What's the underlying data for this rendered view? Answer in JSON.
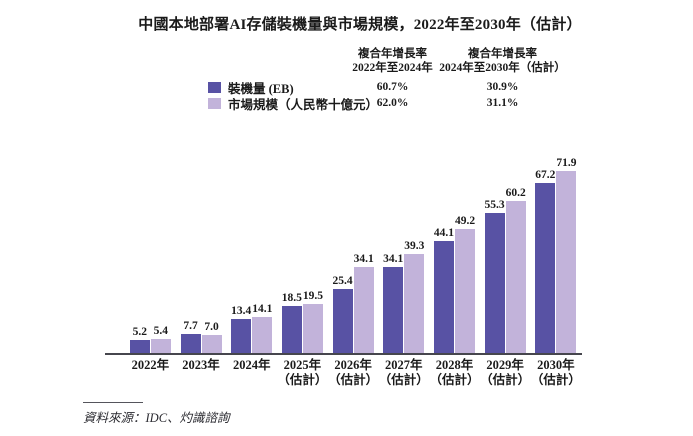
{
  "title": "中國本地部署AI存儲裝機量與市場規模，2022年至2030年（估計）",
  "colors": {
    "installed_base": "#5852A4",
    "market_size": "#C2B3DA",
    "axis": "#46464d"
  },
  "cagr_table": {
    "col1_header_line1": "複合年增長率",
    "col1_header_line2": "2022年至2024年",
    "col2_header_line1": "複合年增長率",
    "col2_header_line2": "2024年至2030年（估計）",
    "rows": [
      {
        "label": "裝機量 (EB)",
        "color": "#5852A4",
        "cagr_2022_2024": "60.7%",
        "cagr_2024_2030": "30.9%"
      },
      {
        "label": "市場規模（人民幣十億元）",
        "color": "#C2B3DA",
        "cagr_2022_2024": "62.0%",
        "cagr_2024_2030": "31.1%"
      }
    ]
  },
  "chart_data": {
    "type": "bar",
    "title": "中國本地部署AI存儲裝機量與市場規模，2022年至2030年（估計）",
    "categories": [
      "2022年",
      "2023年",
      "2024年",
      "2025年",
      "2026年",
      "2027年",
      "2028年",
      "2029年",
      "2030年"
    ],
    "estimate_suffix": "（估計）",
    "estimate_from_index": 3,
    "series": [
      {
        "name": "裝機量 (EB)",
        "color": "#5852A4",
        "values": [
          5.2,
          7.7,
          13.4,
          18.5,
          25.4,
          34.1,
          44.1,
          55.3,
          67.2
        ]
      },
      {
        "name": "市場規模（人民幣十億元）",
        "color": "#C2B3DA",
        "values": [
          5.4,
          7.0,
          14.1,
          19.5,
          34.1,
          39.3,
          49.2,
          60.2,
          71.9
        ]
      }
    ],
    "xlabel": "",
    "ylabel": "",
    "ylim": [
      0,
      75
    ],
    "grid": false,
    "value_labels": true,
    "legend_position": "top-left-table"
  },
  "footer": {
    "source": "資料來源：IDC、灼識諮詢"
  }
}
